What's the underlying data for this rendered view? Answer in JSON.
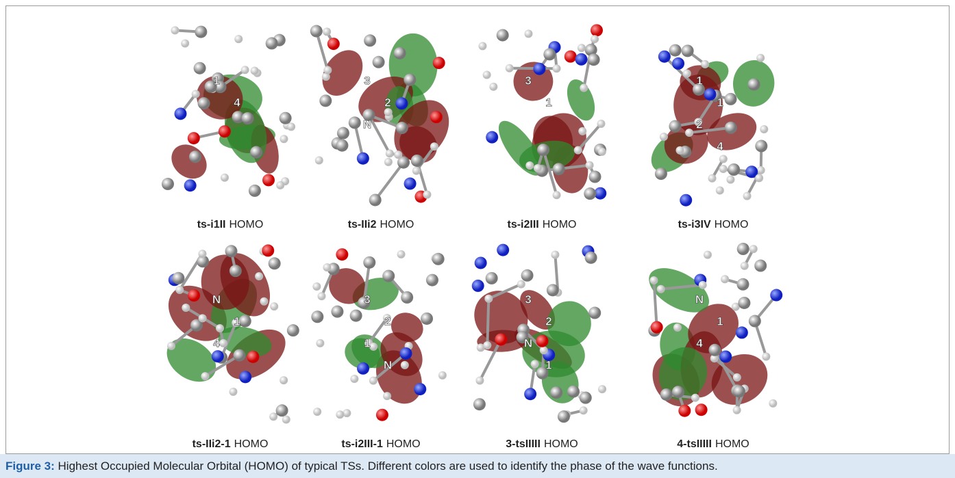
{
  "figure": {
    "panels": [
      {
        "name": "ts-i1II",
        "suffix": "HOMO",
        "atom_labels": [
          "1",
          "4"
        ]
      },
      {
        "name": "ts-IIi2",
        "suffix": "HOMO",
        "atom_labels": [
          "3",
          "2",
          "N"
        ]
      },
      {
        "name": "ts-i2III",
        "suffix": "HOMO",
        "atom_labels": [
          "3",
          "1"
        ]
      },
      {
        "name": "ts-i3IV",
        "suffix": "HOMO",
        "atom_labels": [
          "1",
          "1",
          "2",
          "4"
        ]
      },
      {
        "name": "ts-IIi2-1",
        "suffix": "HOMO",
        "atom_labels": [
          "N",
          "1",
          "4"
        ]
      },
      {
        "name": "ts-i2III-1",
        "suffix": "HOMO",
        "atom_labels": [
          "3",
          "2",
          "1",
          "N"
        ]
      },
      {
        "name": "3-tsIIIII",
        "suffix": "HOMO",
        "atom_labels": [
          "3",
          "2",
          "N",
          "1"
        ]
      },
      {
        "name": "4-tsIIIII",
        "suffix": "HOMO",
        "atom_labels": [
          "N",
          "1",
          "4"
        ]
      }
    ],
    "caption": {
      "label": "Figure 3:",
      "text": "Highest Occupied Molecular Orbital (HOMO) of typical TSs. Different colors are used to identify the phase of the wave functions."
    }
  }
}
